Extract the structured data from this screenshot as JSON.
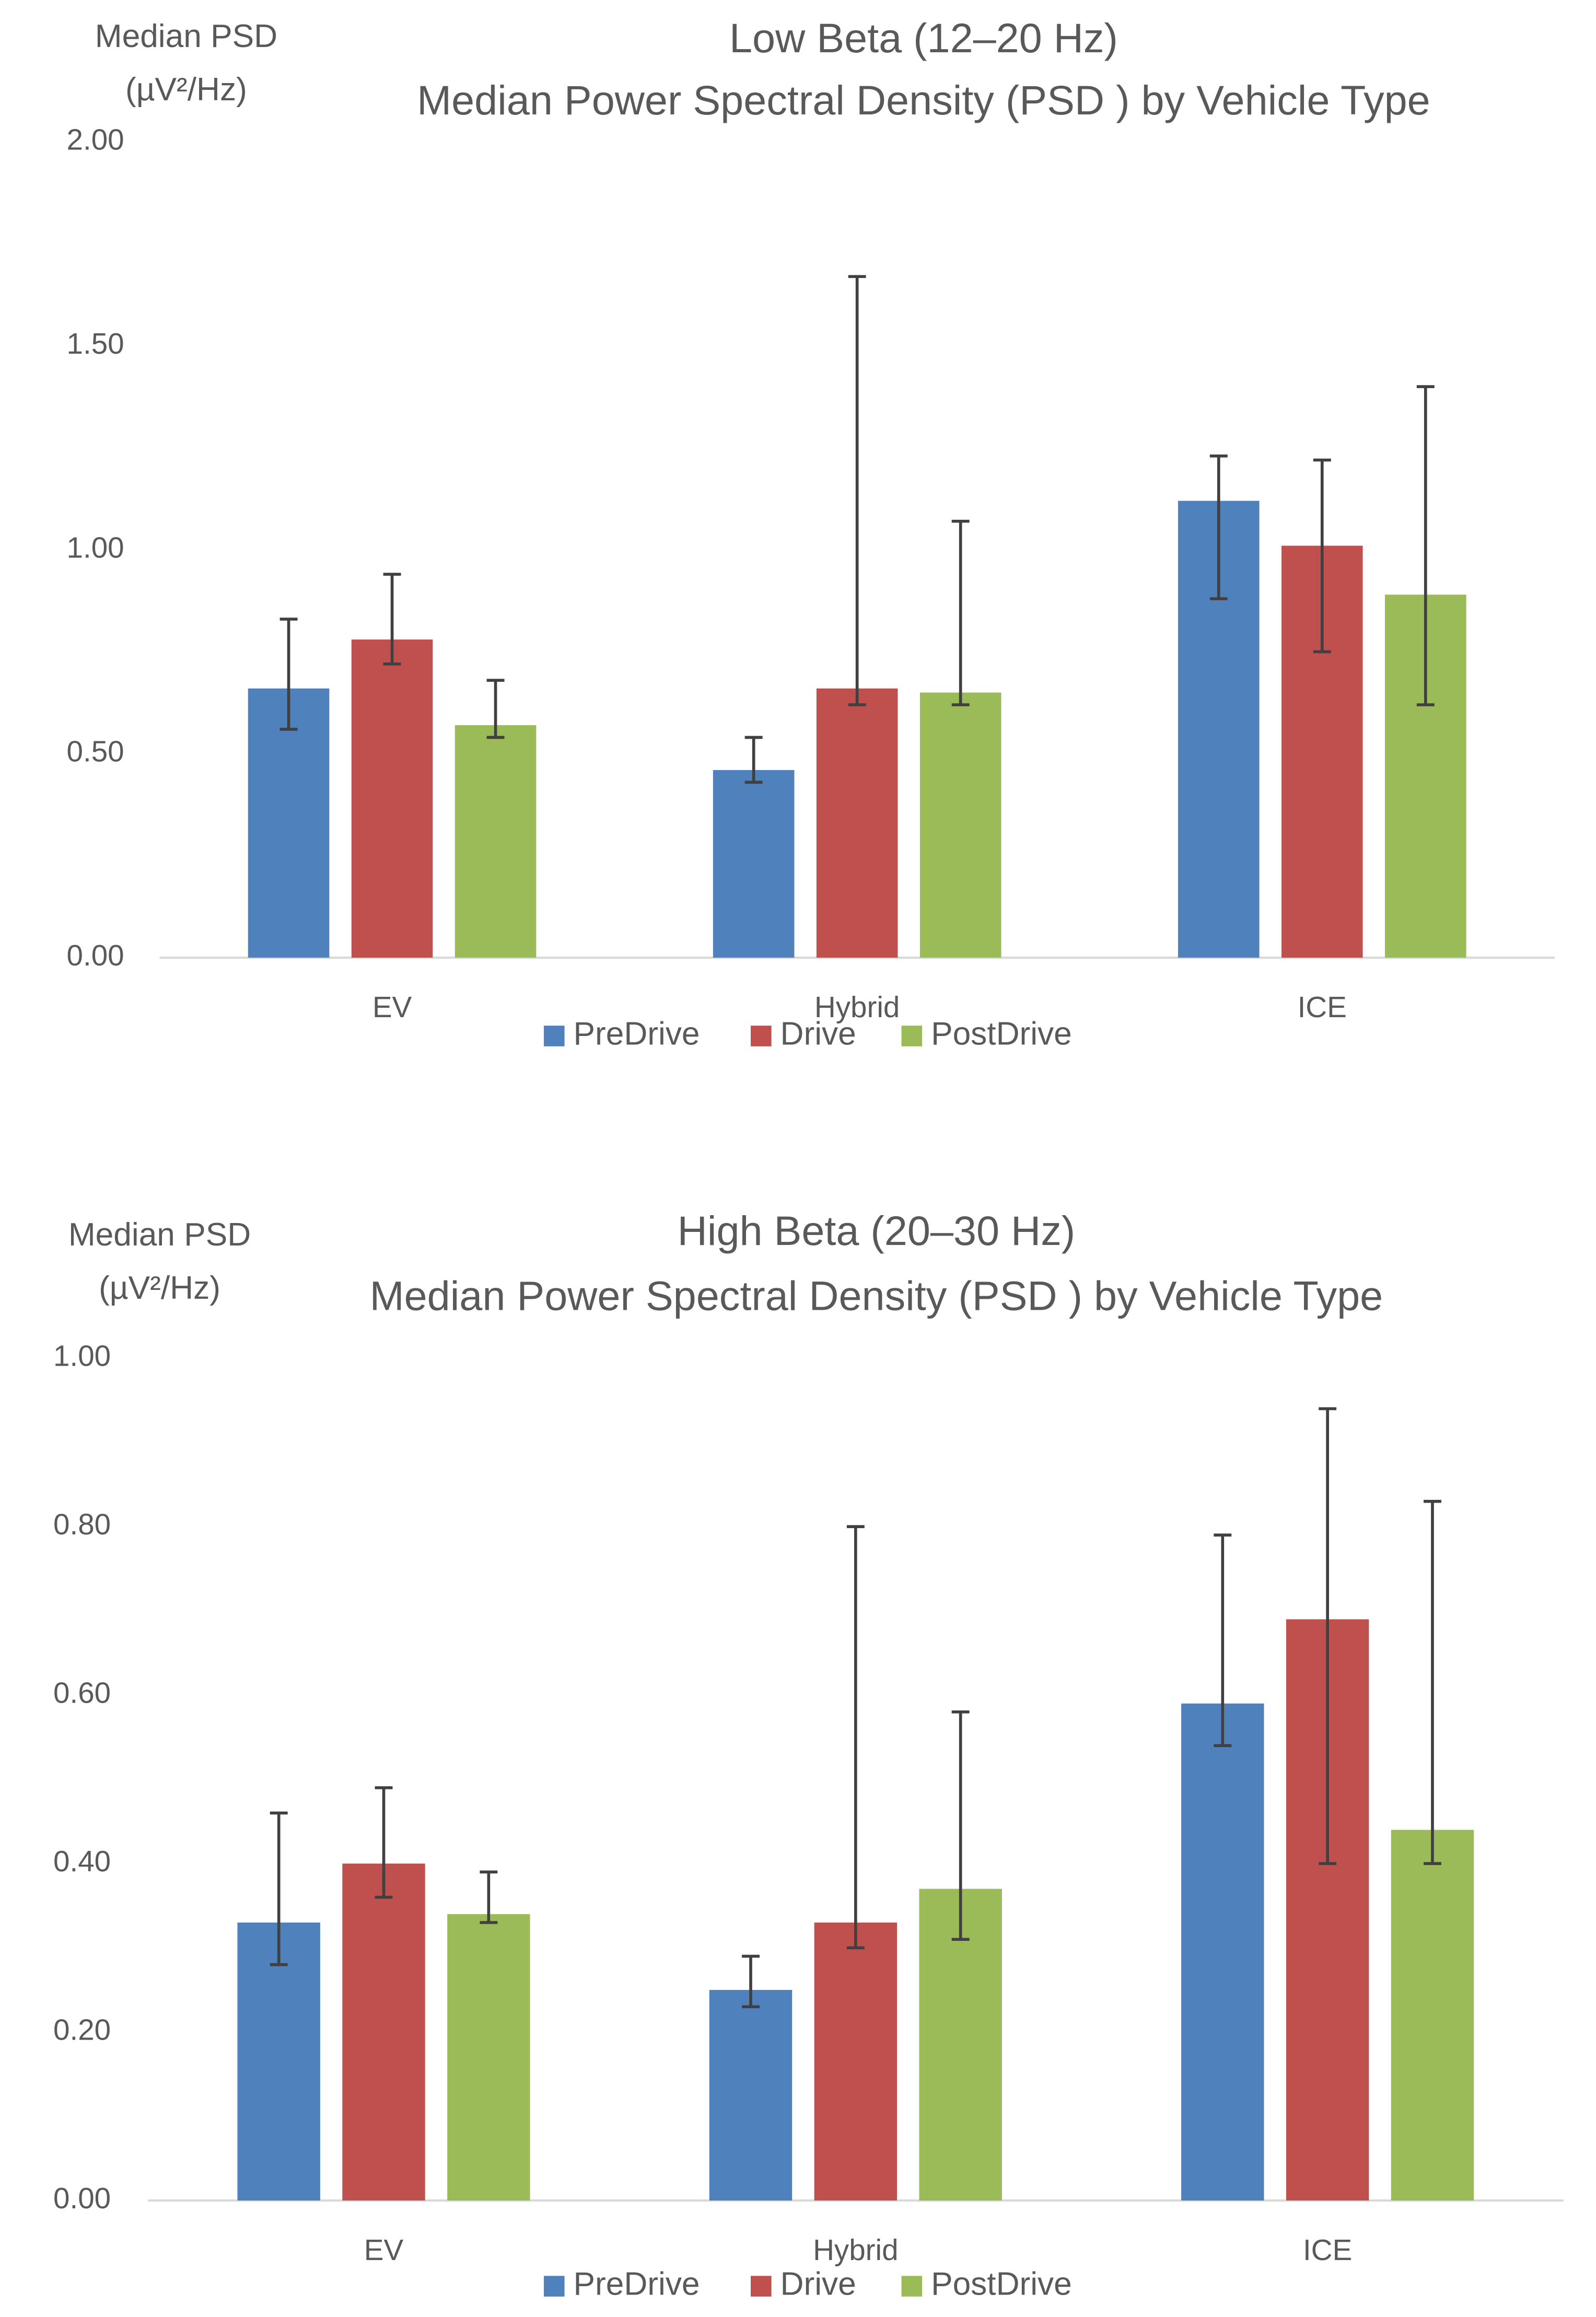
{
  "chart_data": [
    {
      "type": "bar",
      "title": "Low Beta (12–20 Hz)",
      "subtitle": "Median Power Spectral Density (PSD ) by Vehicle Type",
      "ylabel": [
        "Median PSD",
        "(µV²/Hz)"
      ],
      "categories": [
        "EV",
        "Hybrid",
        "ICE"
      ],
      "series": [
        {
          "name": "PreDrive",
          "color": "#4f81bd",
          "values": [
            0.66,
            0.46,
            1.12
          ],
          "error_low": [
            0.56,
            0.43,
            0.88
          ],
          "error_high": [
            0.83,
            0.54,
            1.23
          ]
        },
        {
          "name": "Drive",
          "color": "#c0504d",
          "values": [
            0.78,
            0.66,
            1.01
          ],
          "error_low": [
            0.72,
            0.62,
            0.75
          ],
          "error_high": [
            0.94,
            1.67,
            1.22
          ]
        },
        {
          "name": "PostDrive",
          "color": "#9bbb59",
          "values": [
            0.57,
            0.65,
            0.89
          ],
          "error_low": [
            0.54,
            0.62,
            0.62
          ],
          "error_high": [
            0.68,
            1.07,
            1.4
          ]
        }
      ],
      "ylim": [
        0,
        2
      ],
      "yticks": [
        {
          "value": 0,
          "label": "0.00"
        },
        {
          "value": 0.5,
          "label": "0.50"
        },
        {
          "value": 1,
          "label": "1.00"
        },
        {
          "value": 1.5,
          "label": "1.50"
        },
        {
          "value": 2,
          "label": "2.00"
        }
      ],
      "legend": "bottom"
    },
    {
      "type": "bar",
      "title": "High Beta (20–30 Hz)",
      "subtitle": "Median Power Spectral Density (PSD ) by Vehicle Type",
      "ylabel": [
        "Median PSD",
        "(µV²/Hz)"
      ],
      "categories": [
        "EV",
        "Hybrid",
        "ICE"
      ],
      "series": [
        {
          "name": "PreDrive",
          "color": "#4f81bd",
          "values": [
            0.33,
            0.25,
            0.59
          ],
          "error_low": [
            0.28,
            0.23,
            0.54
          ],
          "error_high": [
            0.46,
            0.29,
            0.79
          ]
        },
        {
          "name": "Drive",
          "color": "#c0504d",
          "values": [
            0.4,
            0.33,
            0.69
          ],
          "error_low": [
            0.36,
            0.3,
            0.4
          ],
          "error_high": [
            0.49,
            0.8,
            0.94
          ]
        },
        {
          "name": "PostDrive",
          "color": "#9bbb59",
          "values": [
            0.34,
            0.37,
            0.44
          ],
          "error_low": [
            0.33,
            0.31,
            0.4
          ],
          "error_high": [
            0.39,
            0.58,
            0.83
          ]
        }
      ],
      "ylim": [
        0,
        1
      ],
      "yticks": [
        {
          "value": 0,
          "label": "0.00"
        },
        {
          "value": 0.2,
          "label": "0.20"
        },
        {
          "value": 0.4,
          "label": "0.40"
        },
        {
          "value": 0.6,
          "label": "0.60"
        },
        {
          "value": 0.8,
          "label": "0.80"
        },
        {
          "value": 1,
          "label": "1.00"
        }
      ],
      "legend": "bottom"
    }
  ]
}
